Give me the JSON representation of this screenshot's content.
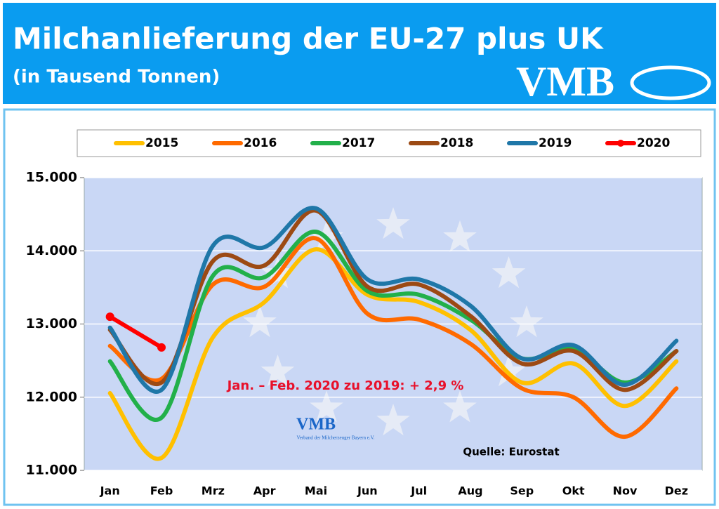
{
  "chart_data": {
    "type": "line",
    "title": "Milchanlieferung der EU-27 plus UK",
    "subtitle": "(in Tausend Tonnen)",
    "logo": "VMB",
    "watermark": "VMB",
    "watermark_caption": "Verband der Milcherzeuger Bayern e.V.",
    "annotation": "Jan. – Feb.  2020 zu 2019: + 2,9 %",
    "source": "Quelle: Eurostat",
    "categories": [
      "Jan",
      "Feb",
      "Mrz",
      "Apr",
      "Mai",
      "Jun",
      "Jul",
      "Aug",
      "Sep",
      "Okt",
      "Nov",
      "Dez"
    ],
    "ylim": [
      11000,
      15000
    ],
    "yticks": [
      {
        "value": 11000,
        "label": "11.000"
      },
      {
        "value": 12000,
        "label": "12.000"
      },
      {
        "value": 13000,
        "label": "13.000"
      },
      {
        "value": 14000,
        "label": "14.000"
      },
      {
        "value": 15000,
        "label": "15.000"
      }
    ],
    "grid": true,
    "legend": "top",
    "series": [
      {
        "name": "2015",
        "color": "#ffc000",
        "values": [
          12055,
          11170,
          12820,
          13300,
          14020,
          13400,
          13300,
          12920,
          12200,
          12460,
          11880,
          12490
        ]
      },
      {
        "name": "2016",
        "color": "#ff6a00",
        "values": [
          12700,
          12250,
          13540,
          13510,
          14170,
          13140,
          13060,
          12730,
          12120,
          12000,
          11460,
          12120
        ]
      },
      {
        "name": "2017",
        "color": "#22b04a",
        "values": [
          12490,
          11720,
          13660,
          13640,
          14260,
          13450,
          13400,
          13060,
          12530,
          12660,
          12200,
          12630
        ]
      },
      {
        "name": "2018",
        "color": "#9c4a14",
        "values": [
          12920,
          12200,
          13860,
          13800,
          14550,
          13510,
          13540,
          13110,
          12460,
          12630,
          12100,
          12630
        ]
      },
      {
        "name": "2019",
        "color": "#1f77a8",
        "values": [
          12950,
          12100,
          14070,
          14050,
          14580,
          13610,
          13610,
          13250,
          12530,
          12710,
          12170,
          12770
        ]
      },
      {
        "name": "2020",
        "color": "#ff0000",
        "markers": true,
        "values": [
          13100,
          12680,
          null,
          null,
          null,
          null,
          null,
          null,
          null,
          null,
          null,
          null
        ]
      }
    ]
  }
}
